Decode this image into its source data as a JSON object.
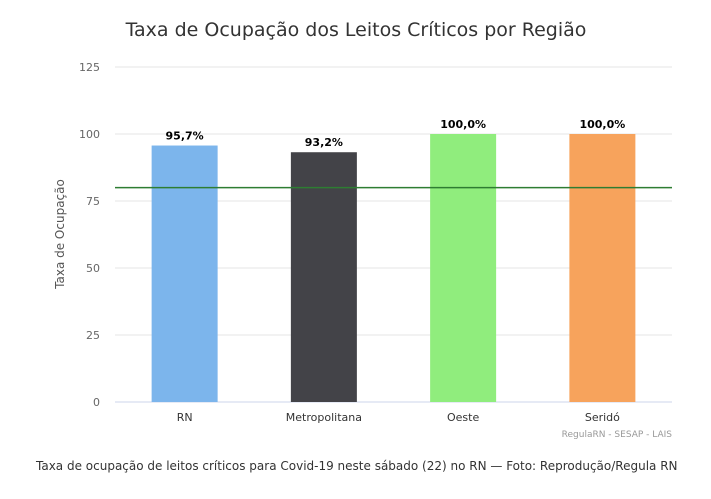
{
  "chart_data": {
    "type": "bar",
    "title": "Taxa de Ocupação dos Leitos Críticos por Região",
    "xlabel": "",
    "ylabel": "Taxa de Ocupação",
    "ylim": [
      0,
      125
    ],
    "yticks": [
      0,
      25,
      50,
      75,
      100,
      125
    ],
    "ytick_labels": [
      "0",
      "25",
      "50",
      "75",
      "100",
      "125"
    ],
    "categories": [
      "RN",
      "Metropolitana",
      "Oeste",
      "Seridó"
    ],
    "values": [
      95.7,
      93.2,
      100.0,
      100.0
    ],
    "data_labels": [
      "95,7%",
      "93,2%",
      "100,0%",
      "100,0%"
    ],
    "colors": [
      "#7cb5ec",
      "#434348",
      "#90ed7d",
      "#f7a35c"
    ],
    "reference_line": {
      "value": 80,
      "color": "#2e7d32"
    },
    "grid": true,
    "credits": "RegulaRN - SESAP - LAIS"
  },
  "caption": "Taxa de ocupação de leitos críticos para Covid-19 neste sábado (22) no RN — Foto: Reprodução/Regula RN"
}
